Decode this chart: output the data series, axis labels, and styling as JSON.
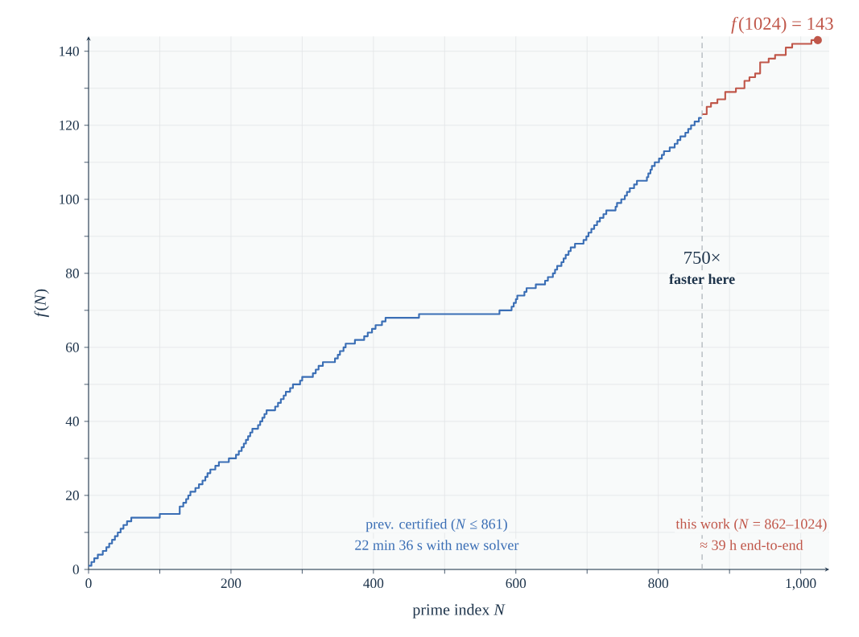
{
  "chart_data": {
    "type": "step",
    "xlabel": "prime index *N*",
    "ylabel": "*f*(*N*)",
    "xlim": [
      0,
      1040
    ],
    "ylim": [
      0,
      144
    ],
    "xticks": [
      0,
      {
        "value": 100,
        "label": null
      },
      200,
      {
        "value": 300,
        "label": null
      },
      400,
      {
        "value": 500,
        "label": null
      },
      600,
      {
        "value": 700,
        "label": null
      },
      800,
      {
        "value": 900,
        "label": null
      },
      {
        "value": 1000,
        "label": "1,000"
      }
    ],
    "yticks": [
      0,
      {
        "value": 10,
        "label": null
      },
      20,
      {
        "value": 30,
        "label": null
      },
      40,
      {
        "value": 50,
        "label": null
      },
      60,
      {
        "value": 70,
        "label": null
      },
      80,
      {
        "value": 90,
        "label": null
      },
      100,
      {
        "value": 110,
        "label": null
      },
      120,
      {
        "value": 130,
        "label": null
      },
      140
    ],
    "grid": true,
    "series": [
      {
        "color": "#3a6eb5",
        "x": [
          0,
          4,
          8,
          13,
          20,
          25,
          29,
          33,
          37,
          41,
          45,
          49,
          54,
          60,
          100,
          128,
          133,
          137,
          140,
          143,
          150,
          155,
          160,
          164,
          167,
          171,
          178,
          183,
          197,
          207,
          211,
          215,
          218,
          221,
          224,
          227,
          230,
          238,
          241,
          244,
          247,
          250,
          262,
          266,
          270,
          274,
          277,
          283,
          287,
          297,
          300,
          315,
          319,
          323,
          329,
          346,
          350,
          353,
          358,
          361,
          374,
          387,
          392,
          398,
          403,
          412,
          417,
          464,
          577,
          594,
          597,
          600,
          602,
          612,
          615,
          628,
          641,
          645,
          652,
          655,
          658,
          664,
          667,
          670,
          674,
          677,
          683,
          695,
          699,
          702,
          706,
          710,
          714,
          718,
          723,
          727,
          740,
          742,
          748,
          753,
          756,
          760,
          766,
          770,
          784,
          786,
          789,
          791,
          795,
          801,
          805,
          808,
          816,
          823,
          827,
          831,
          838,
          842,
          846,
          851,
          857,
          861
        ],
        "values": [
          1,
          2,
          3,
          4,
          5,
          6,
          7,
          8,
          9,
          10,
          11,
          12,
          13,
          14,
          15,
          17,
          18,
          19,
          20,
          21,
          22,
          23,
          24,
          25,
          26,
          27,
          28,
          29,
          30,
          31,
          32,
          33,
          34,
          35,
          36,
          37,
          38,
          39,
          40,
          41,
          42,
          43,
          44,
          45,
          46,
          47,
          48,
          49,
          50,
          51,
          52,
          53,
          54,
          55,
          56,
          57,
          58,
          59,
          60,
          61,
          62,
          63,
          64,
          65,
          66,
          67,
          68,
          69,
          70,
          71,
          72,
          73,
          74,
          75,
          76,
          77,
          78,
          79,
          80,
          81,
          82,
          83,
          84,
          85,
          86,
          87,
          88,
          89,
          90,
          91,
          92,
          93,
          94,
          95,
          96,
          97,
          98,
          99,
          100,
          101,
          102,
          103,
          104,
          105,
          106,
          107,
          108,
          109,
          110,
          111,
          112,
          113,
          114,
          115,
          116,
          117,
          118,
          119,
          120,
          121,
          122,
          122
        ]
      },
      {
        "color": "#c0574a",
        "x": [
          862,
          868,
          874,
          883,
          894,
          909,
          921,
          928,
          936,
          943,
          955,
          964,
          979,
          988,
          1015,
          1024
        ],
        "values": [
          123,
          125,
          126,
          127,
          129,
          130,
          132,
          133,
          134,
          137,
          138,
          139,
          141,
          142,
          143,
          143
        ]
      },
      {
        "type": "scatter",
        "color": "#c0574a",
        "marker": "circle",
        "x": [
          1024
        ],
        "values": [
          143
        ]
      }
    ],
    "ref_lines": [
      {
        "axis": "x",
        "value": 861.5,
        "color": "#a9b0b6",
        "line_style": "dashed"
      }
    ],
    "annotations": [
      {
        "text": "*f*(1024) = 143",
        "x": 1024,
        "y": 143
      },
      "750×",
      "faster here",
      "prev. certified (*N* ≤ 861)",
      "22 min 36 s with new solver",
      "this work (*N* = 862–1024)",
      "≈ 39 h end-to-end"
    ]
  }
}
